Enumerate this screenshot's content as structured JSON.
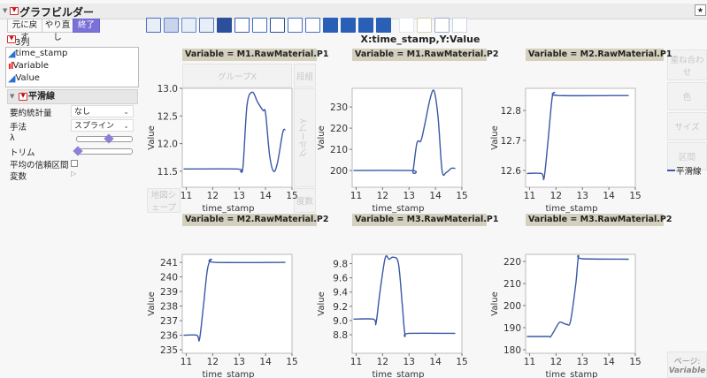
{
  "app": {
    "title": "グラフビルダー"
  },
  "buttons": {
    "undo": "元に戻す",
    "redo": "やり直し",
    "done": "終了"
  },
  "toolbar": {
    "icons": [
      "points-icon",
      "smoother-icon",
      "line-of-fit-icon",
      "ellipse-icon",
      "contour-icon",
      "line-icon",
      "bar-icon",
      "area-icon",
      "box-plot-icon",
      "histogram-icon",
      "heatmap-icon",
      "pie-icon",
      "treemap-icon",
      "mosaic-icon",
      "caption-box-icon",
      "formula-icon",
      "map-shape-icon",
      "parallel-icon"
    ]
  },
  "columns": {
    "header": "3列",
    "items": [
      {
        "label": "time_stamp",
        "type": "continuous"
      },
      {
        "label": "Variable",
        "type": "nominal"
      },
      {
        "label": "Value",
        "type": "continuous"
      }
    ]
  },
  "smoother": {
    "header": "平滑線",
    "rows": {
      "summary_label": "要約統計量",
      "summary_value": "なし",
      "method_label": "手法",
      "method_value": "スプライン",
      "lambda_label": "λ",
      "lambda_value": 0.6,
      "trim_label": "トリム",
      "trim_value": 0,
      "ci_label": "平均の信頼区間",
      "ci_checked": false,
      "vars_label": "変数"
    }
  },
  "graph": {
    "title": "X:time_stamp,Y:Value"
  },
  "dropzones": {
    "group_x": "グループX",
    "wrap": "段組",
    "group_y": "グループY",
    "map_shape": "地図シェープ",
    "freq": "度数",
    "overlay": "重ね合わせ",
    "color": "色",
    "size": "サイズ",
    "interval": "区間",
    "page_label": "ページ:",
    "page_value": "Variable"
  },
  "legend": {
    "label": "平滑線",
    "color": "#3a57a8"
  },
  "colors": {
    "curve": "#3a57a8",
    "header": "#d4d0bd",
    "done": "#7a72d8"
  },
  "chart_data": [
    {
      "type": "line",
      "title": "Variable = M1.RawMaterial.P1",
      "xlabel": "time_stamp",
      "ylabel": "Value",
      "xlim": [
        10.85,
        15
      ],
      "ylim": [
        11.21,
        13.0
      ],
      "xticks": [
        11,
        12,
        13,
        14,
        15
      ],
      "yticks": [
        11.5,
        12.0,
        12.5,
        13.0
      ],
      "ytick_labels": [
        "11.5",
        "12.0",
        "12.5",
        "13.0"
      ],
      "x": [
        10.9,
        12.9,
        13.05,
        13.15,
        13.3,
        13.5,
        13.7,
        13.9,
        14.0,
        14.15,
        14.3,
        14.45,
        14.65,
        14.75
      ],
      "y": [
        11.54,
        11.54,
        11.5,
        11.6,
        12.7,
        12.93,
        12.75,
        12.6,
        12.55,
        11.8,
        11.5,
        11.65,
        12.2,
        12.25
      ]
    },
    {
      "type": "line",
      "title": "Variable = M1.RawMaterial.P2",
      "xlabel": "time_stamp",
      "ylabel": "Value",
      "xlim": [
        10.85,
        15
      ],
      "ylim": [
        192.1,
        238.8
      ],
      "xticks": [
        11,
        12,
        13,
        14,
        15
      ],
      "yticks": [
        200,
        210,
        220,
        230
      ],
      "ytick_labels": [
        "200",
        "210",
        "220",
        "230"
      ],
      "x": [
        10.9,
        13.1,
        13.15,
        13.3,
        13.45,
        13.6,
        13.8,
        13.95,
        14.1,
        14.25,
        14.4,
        14.6,
        14.75
      ],
      "y": [
        200,
        200,
        199.5,
        213,
        214,
        222,
        234,
        237.5,
        225,
        200,
        199,
        201,
        201
      ]
    },
    {
      "type": "line",
      "title": "Variable = M2.RawMaterial.P1",
      "xlabel": "time_stamp",
      "ylabel": "Value",
      "xlim": [
        10.85,
        15
      ],
      "ylim": [
        12.544,
        12.874
      ],
      "xticks": [
        11,
        12,
        13,
        14,
        15
      ],
      "yticks": [
        12.6,
        12.7,
        12.8
      ],
      "ytick_labels": [
        "12.6",
        "12.7",
        "12.8"
      ],
      "x": [
        10.9,
        11.45,
        11.55,
        11.7,
        11.85,
        11.95,
        12.1,
        14.75
      ],
      "y": [
        12.59,
        12.59,
        12.575,
        12.7,
        12.84,
        12.86,
        12.85,
        12.85
      ]
    },
    {
      "type": "line",
      "title": "Variable = M2.RawMaterial.P2",
      "xlabel": "time_stamp",
      "ylabel": "Value",
      "xlim": [
        10.85,
        15
      ],
      "ylim": [
        234.76,
        241.55
      ],
      "xticks": [
        11,
        12,
        13,
        14,
        15
      ],
      "yticks": [
        235,
        236,
        237,
        238,
        239,
        240,
        241
      ],
      "ytick_labels": [
        "235",
        "236",
        "237",
        "238",
        "239",
        "240",
        "241"
      ],
      "x": [
        10.9,
        11.4,
        11.5,
        11.65,
        11.8,
        11.95,
        12.1,
        14.75
      ],
      "y": [
        236,
        236,
        235.7,
        238,
        240.5,
        241.2,
        241,
        241
      ]
    },
    {
      "type": "line",
      "title": "Variable = M3.RawMaterial.P1",
      "xlabel": "time_stamp",
      "ylabel": "Value",
      "xlim": [
        10.85,
        15
      ],
      "ylim": [
        8.54,
        9.93
      ],
      "xticks": [
        11,
        12,
        13,
        14,
        15
      ],
      "yticks": [
        8.8,
        9.0,
        9.2,
        9.4,
        9.6,
        9.8
      ],
      "ytick_labels": [
        "8.8",
        "9.0",
        "9.2",
        "9.4",
        "9.6",
        "9.8"
      ],
      "x": [
        10.9,
        11.65,
        11.75,
        11.9,
        12.1,
        12.25,
        12.4,
        12.6,
        12.75,
        12.85,
        13.0,
        14.75
      ],
      "y": [
        9.02,
        9.02,
        8.96,
        9.4,
        9.88,
        9.86,
        9.89,
        9.8,
        9.2,
        8.8,
        8.82,
        8.82
      ]
    },
    {
      "type": "line",
      "title": "Variable = M3.RawMaterial.P2",
      "xlabel": "time_stamp",
      "ylabel": "Value",
      "xlim": [
        10.85,
        15
      ],
      "ylim": [
        178.4,
        223.2
      ],
      "xticks": [
        11,
        12,
        13,
        14,
        15
      ],
      "yticks": [
        180,
        190,
        200,
        210,
        220
      ],
      "ytick_labels": [
        "180",
        "190",
        "200",
        "210",
        "220"
      ],
      "x": [
        10.9,
        11.7,
        11.8,
        12.0,
        12.15,
        12.4,
        12.55,
        12.75,
        12.85,
        13.0,
        14.75
      ],
      "y": [
        186,
        186,
        186,
        190,
        192.5,
        191.5,
        193,
        210,
        222,
        221.2,
        221
      ]
    }
  ]
}
